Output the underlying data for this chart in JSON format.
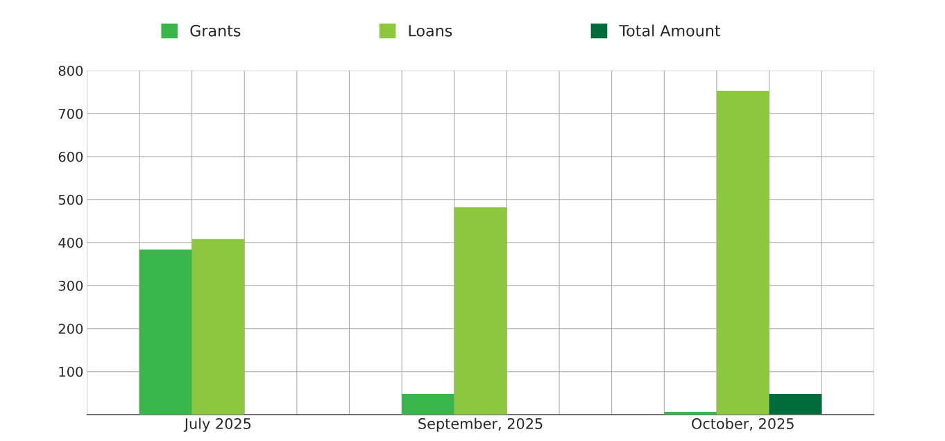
{
  "chart_data": {
    "type": "bar",
    "categories": [
      "July 2025",
      "September, 2025",
      "October, 2025"
    ],
    "series": [
      {
        "name": "Grants",
        "color": "#39b54a",
        "values": [
          384,
          48,
          6
        ]
      },
      {
        "name": "Loans",
        "color": "#8dc63f",
        "values": [
          408,
          482,
          753
        ]
      },
      {
        "name": "Total Amount",
        "color": "#006b3a",
        "values": [
          null,
          null,
          48
        ]
      }
    ],
    "ylim": [
      0,
      800
    ],
    "yticks": [
      100,
      200,
      300,
      400,
      500,
      600,
      700,
      800
    ],
    "grid": true,
    "legend": "top"
  }
}
